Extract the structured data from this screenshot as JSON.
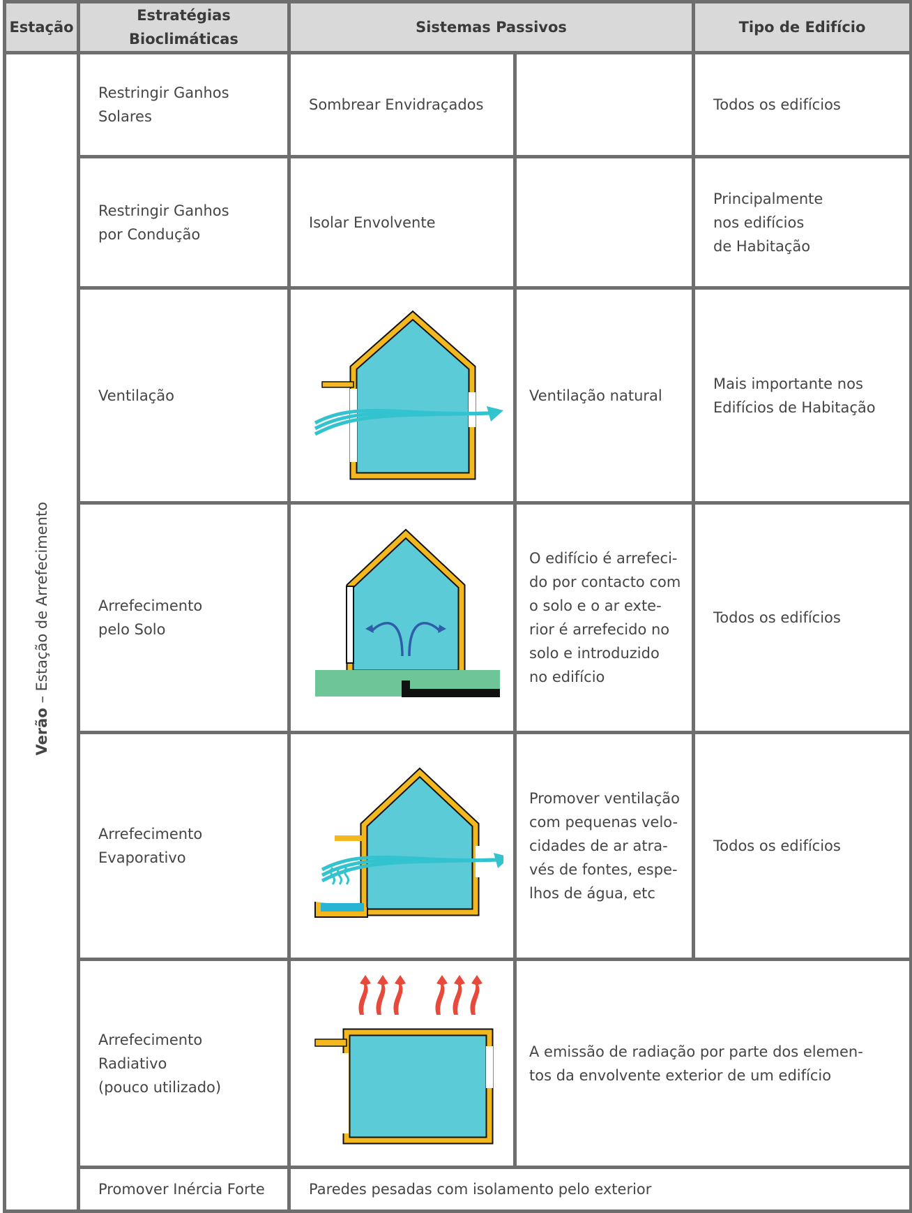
{
  "header": [
    "Estação",
    "Estratégias Bioclimáticas",
    "Sistemas Passivos",
    "Tipo de Edifício"
  ],
  "season": {
    "bold": "Verão",
    "rest": " – Estação de Arrefecimento"
  },
  "rows": [
    {
      "strategy": [
        "Restringir Ganhos",
        "Solares"
      ],
      "system": "Sombrear Envidraçados",
      "type": "Todos os edifícios"
    },
    {
      "strategy": [
        "Restringir Ganhos",
        "por Condução"
      ],
      "system": "Isolar Envolvente",
      "type": [
        "Principalmente",
        "nos edifícios",
        "de Habitação"
      ]
    },
    {
      "strategy": "Ventilação",
      "description": "Ventilação natural",
      "type": [
        "Mais importante nos",
        "Edifícios de Habitação"
      ]
    },
    {
      "strategy": [
        "Arrefecimento",
        "pelo Solo"
      ],
      "description": [
        "O edifício é arrefeci-",
        "do por contacto com",
        "o solo e o ar exte-",
        "rior é arrefecido no",
        "solo e introduzido",
        "no edifício"
      ],
      "type": "Todos os edifícios"
    },
    {
      "strategy": [
        "Arrefecimento",
        "Evaporativo"
      ],
      "description": [
        "Promover ventilação",
        "com pequenas velo-",
        "cidades de ar atra-",
        "vés de fontes, espe-",
        "lhos de água, etc"
      ],
      "type": "Todos os edifícios"
    },
    {
      "strategy": [
        "Arrefecimento",
        "Radiativo",
        "(pouco utilizado)"
      ],
      "description_wide": [
        "A emissão de radiação por parte dos elemen-",
        "tos da envolvente exterior de um edifício"
      ]
    },
    {
      "strategy": "Promover Inércia Forte",
      "system_wide": "Paredes pesadas com isolamento pelo exterior"
    }
  ]
}
